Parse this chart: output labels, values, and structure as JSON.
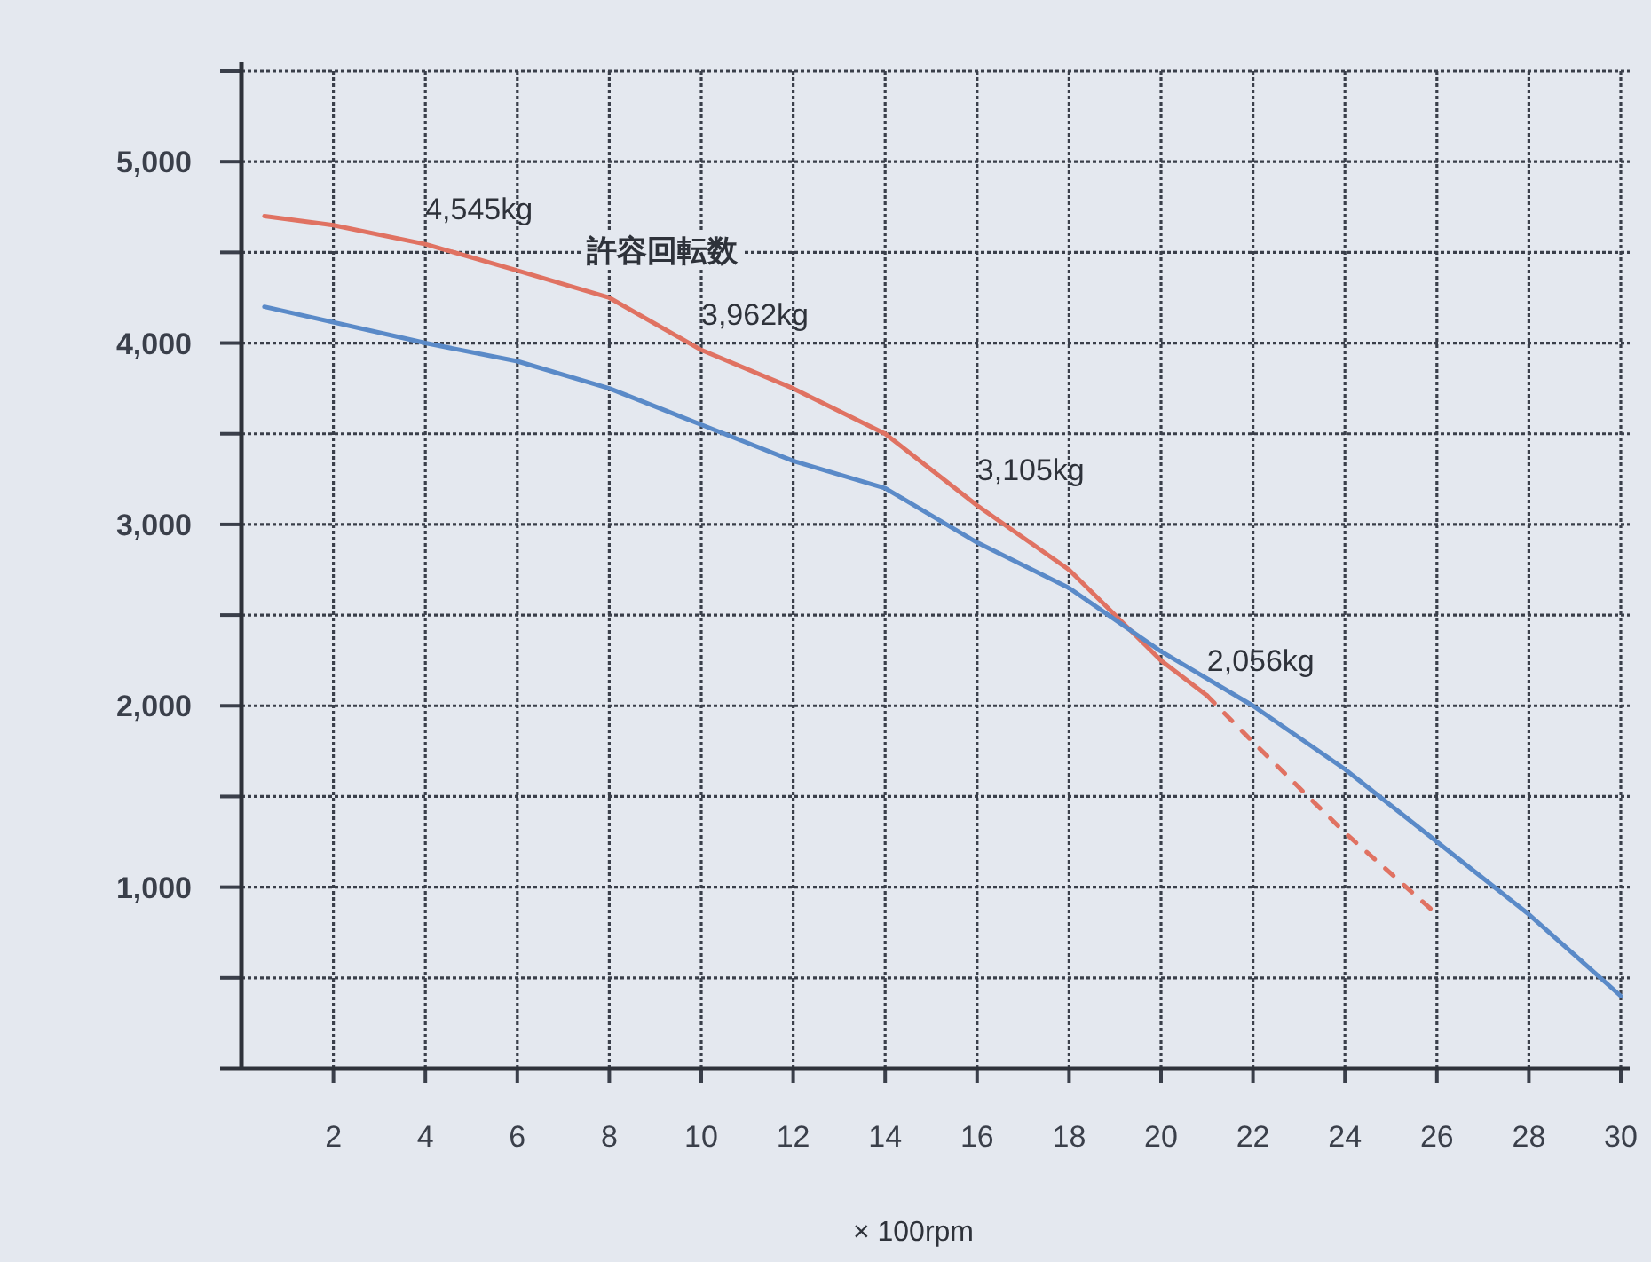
{
  "chart_data": {
    "type": "line",
    "xlabel": "× 100rpm",
    "xlim": [
      0,
      30
    ],
    "ylim": [
      0,
      5500
    ],
    "xticks": [
      2,
      4,
      6,
      8,
      10,
      12,
      14,
      16,
      18,
      20,
      22,
      24,
      26,
      28,
      30
    ],
    "yticks": [
      {
        "value": 500,
        "label": null
      },
      {
        "value": 1000,
        "label": "1,000"
      },
      {
        "value": 1500,
        "label": null
      },
      {
        "value": 2000,
        "label": "2,000"
      },
      {
        "value": 2500,
        "label": null
      },
      {
        "value": 3000,
        "label": "3,000"
      },
      {
        "value": 3500,
        "label": null
      },
      {
        "value": 4000,
        "label": "4,000"
      },
      {
        "value": 4500,
        "label": null
      },
      {
        "value": 5000,
        "label": "5,000"
      },
      {
        "value": 5500,
        "label": null
      }
    ],
    "grid": true,
    "marker": "none",
    "series": [
      {
        "color": "#e07262",
        "line_style": "solid",
        "x": [
          0.5,
          2,
          4,
          6,
          8,
          10,
          12,
          14,
          16,
          18,
          19,
          20,
          21
        ],
        "values": [
          4700,
          4650,
          4545,
          4400,
          4250,
          3962,
          3750,
          3500,
          3105,
          2750,
          2500,
          2250,
          2056
        ]
      },
      {
        "color": "#e07262",
        "line_style": "dashed",
        "x": [
          21,
          22,
          24,
          26
        ],
        "values": [
          2056,
          1800,
          1300,
          850
        ]
      },
      {
        "color": "#5a8ac8",
        "line_style": "solid",
        "x": [
          0.5,
          4,
          6,
          8,
          10,
          12,
          14,
          16,
          18,
          20,
          22,
          24,
          26,
          28,
          30
        ],
        "values": [
          4200,
          4000,
          3900,
          3750,
          3550,
          3350,
          3200,
          2900,
          2650,
          2300,
          2000,
          1650,
          1250,
          850,
          400
        ]
      }
    ],
    "annotations": [
      "許容回転数",
      {
        "text": "4,545kg",
        "x": 4,
        "y": 4545
      },
      {
        "text": "3,962kg",
        "x": 10,
        "y": 3962
      },
      {
        "text": "3,105kg",
        "x": 16,
        "y": 3105
      },
      {
        "text": "2,056kg",
        "x": 21,
        "y": 2056
      }
    ]
  }
}
